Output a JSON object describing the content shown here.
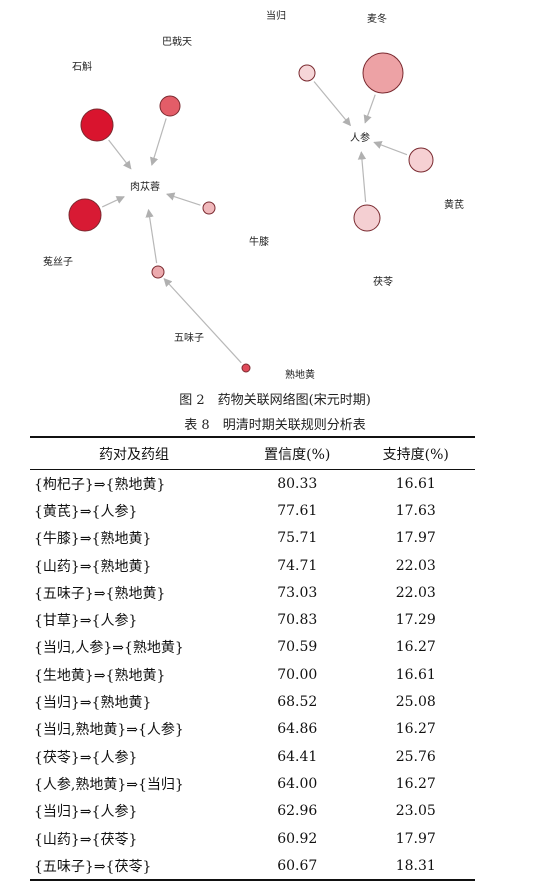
{
  "figure": {
    "caption": "图 2　药物关联网络图(宋元时期)",
    "nodes": [
      {
        "id": "danggui",
        "label": "当归"
      },
      {
        "id": "maidong",
        "label": "麦冬"
      },
      {
        "id": "bajitian",
        "label": "巴戟天"
      },
      {
        "id": "shihu",
        "label": "石斛"
      },
      {
        "id": "renshen",
        "label": "人参"
      },
      {
        "id": "roucongrong",
        "label": "肉苁蓉"
      },
      {
        "id": "huangqi",
        "label": "黄芪"
      },
      {
        "id": "niuxi",
        "label": "牛膝"
      },
      {
        "id": "tusizi",
        "label": "菟丝子"
      },
      {
        "id": "fuling",
        "label": "茯苓"
      },
      {
        "id": "wuweizi",
        "label": "五味子"
      },
      {
        "id": "shudihuang",
        "label": "熟地黄"
      }
    ],
    "edges": [
      {
        "from": "danggui",
        "to": "renshen"
      },
      {
        "from": "maidong",
        "to": "renshen"
      },
      {
        "from": "huangqi",
        "to": "renshen"
      },
      {
        "from": "fuling",
        "to": "renshen"
      },
      {
        "from": "bajitian",
        "to": "roucongrong"
      },
      {
        "from": "shihu",
        "to": "roucongrong"
      },
      {
        "from": "tusizi",
        "to": "roucongrong"
      },
      {
        "from": "niuxi",
        "to": "roucongrong"
      },
      {
        "from": "wuweizi",
        "to": "roucongrong"
      },
      {
        "from": "shudihuang",
        "to": "wuweizi"
      }
    ]
  },
  "table": {
    "caption": "表 8　明清时期关联规则分析表",
    "headers": [
      "药对及药组",
      "置信度(%)",
      "支持度(%)"
    ],
    "rows": [
      [
        "{枸杞子}⇒{熟地黄}",
        "80.33",
        "16.61"
      ],
      [
        "{黄芪}⇒{人参}",
        "77.61",
        "17.63"
      ],
      [
        "{牛膝}⇒{熟地黄}",
        "75.71",
        "17.97"
      ],
      [
        "{山药}⇒{熟地黄}",
        "74.71",
        "22.03"
      ],
      [
        "{五味子}⇒{熟地黄}",
        "73.03",
        "22.03"
      ],
      [
        "{甘草}⇒{人参}",
        "70.83",
        "17.29"
      ],
      [
        "{当归,人参}⇒{熟地黄}",
        "70.59",
        "16.27"
      ],
      [
        "{生地黄}⇒{熟地黄}",
        "70.00",
        "16.61"
      ],
      [
        "{当归}⇒{熟地黄}",
        "68.52",
        "25.08"
      ],
      [
        "{当归,熟地黄}⇒{人参}",
        "64.86",
        "16.27"
      ],
      [
        "{茯苓}⇒{人参}",
        "64.41",
        "25.76"
      ],
      [
        "{人参,熟地黄}⇒{当归}",
        "64.00",
        "16.27"
      ],
      [
        "{当归}⇒{人参}",
        "62.96",
        "23.05"
      ],
      [
        "{山药}⇒{茯苓}",
        "60.92",
        "17.97"
      ],
      [
        "{五味子}⇒{茯苓}",
        "60.67",
        "18.31"
      ]
    ]
  }
}
